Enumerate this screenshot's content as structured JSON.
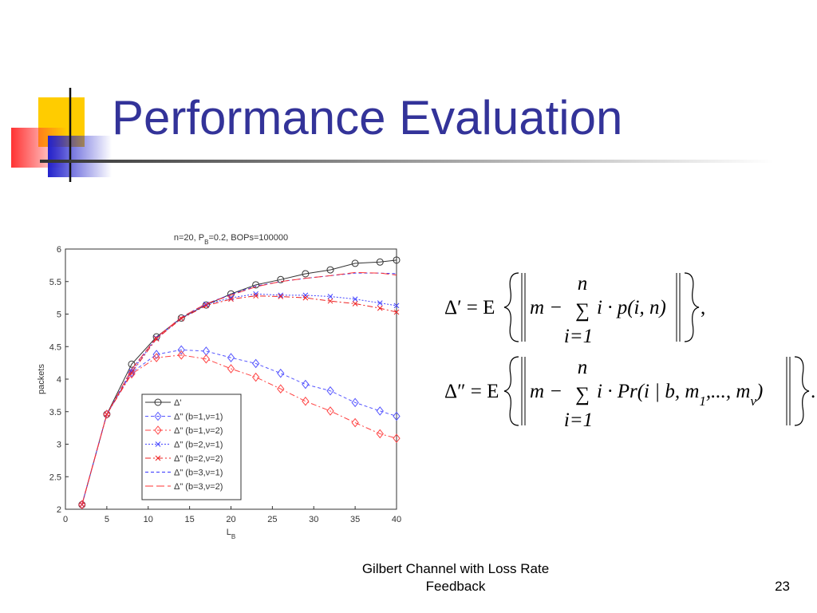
{
  "slide": {
    "title": "Performance Evaluation",
    "footer": "Gilbert Channel with Loss Rate Feedback",
    "page_number": 23,
    "equations": [
      {
        "left": "Δ′ = E",
        "inner_start": "m −",
        "sum": "∑",
        "upper": "n",
        "lower": "i=1",
        "inner_end": [
          "i · p(i, n)"
        ],
        "end": ","
      },
      {
        "left": "Δ″ = E",
        "inner_start": "m −",
        "sum": "∑",
        "upper": "n",
        "lower": "i=1",
        "inner_end": [
          "i · Pr(i | b, m",
          "1",
          ",..., m",
          "v",
          ")"
        ],
        "end": "."
      }
    ]
  },
  "chart_data": {
    "type": "line",
    "title": [
      "n=20, P",
      "B",
      "=0.2, BOPs=100000"
    ],
    "xlabel": [
      "L",
      "B"
    ],
    "ylabel": "packets",
    "x": [
      2,
      5,
      8,
      11,
      14,
      17,
      20,
      23,
      26,
      29,
      32,
      35,
      38,
      40
    ],
    "series": [
      {
        "name": "Δ'",
        "color": "#333333",
        "marker": "circle",
        "dash": "solid",
        "values": [
          2.07,
          3.46,
          4.23,
          4.65,
          4.94,
          5.14,
          5.31,
          5.45,
          5.53,
          5.62,
          5.68,
          5.78,
          5.8,
          5.83
        ]
      },
      {
        "name": "Δ\" (b=1,ν=1)",
        "color": "#5555ff",
        "marker": "diamond",
        "dash": "dashed",
        "values": [
          2.07,
          3.46,
          4.1,
          4.38,
          4.45,
          4.43,
          4.33,
          4.24,
          4.09,
          3.92,
          3.82,
          3.64,
          3.51,
          3.43
        ]
      },
      {
        "name": "Δ\" (b=1,ν=2)",
        "color": "#ff4444",
        "marker": "diamond",
        "dash": "dashdot",
        "values": [
          2.07,
          3.46,
          4.08,
          4.33,
          4.37,
          4.31,
          4.16,
          4.03,
          3.85,
          3.66,
          3.51,
          3.33,
          3.16,
          3.09
        ]
      },
      {
        "name": "Δ\" (b=2,ν=1)",
        "color": "#4444ff",
        "marker": "x",
        "dash": "dotted",
        "values": [
          2.07,
          3.46,
          4.12,
          4.63,
          4.93,
          5.15,
          5.25,
          5.31,
          5.29,
          5.29,
          5.27,
          5.23,
          5.17,
          5.13
        ]
      },
      {
        "name": "Δ\" (b=2,ν=2)",
        "color": "#ee2222",
        "marker": "x",
        "dash": "dashdot",
        "values": [
          2.07,
          3.46,
          4.1,
          4.62,
          4.93,
          5.13,
          5.23,
          5.28,
          5.27,
          5.25,
          5.2,
          5.16,
          5.09,
          5.03
        ]
      },
      {
        "name": "Δ\" (b=3,ν=1)",
        "color": "#3333ff",
        "marker": "none",
        "dash": "dashed",
        "values": [
          2.07,
          3.46,
          4.15,
          4.64,
          4.95,
          5.16,
          5.3,
          5.43,
          5.5,
          5.55,
          5.59,
          5.63,
          5.63,
          5.62
        ]
      },
      {
        "name": "Δ\" (b=3,ν=2)",
        "color": "#ff3333",
        "marker": "none",
        "dash": "longdash",
        "values": [
          2.07,
          3.46,
          4.15,
          4.64,
          4.95,
          5.16,
          5.29,
          5.42,
          5.5,
          5.55,
          5.59,
          5.64,
          5.63,
          5.6
        ]
      }
    ],
    "xlim": [
      0,
      40
    ],
    "xticks": [
      0,
      5,
      10,
      15,
      20,
      25,
      30,
      35,
      40
    ],
    "ylim": [
      2,
      6
    ],
    "yticks": [
      2,
      2.5,
      3,
      3.5,
      4,
      4.5,
      5,
      5.5,
      6
    ],
    "legend": "lower-left"
  }
}
